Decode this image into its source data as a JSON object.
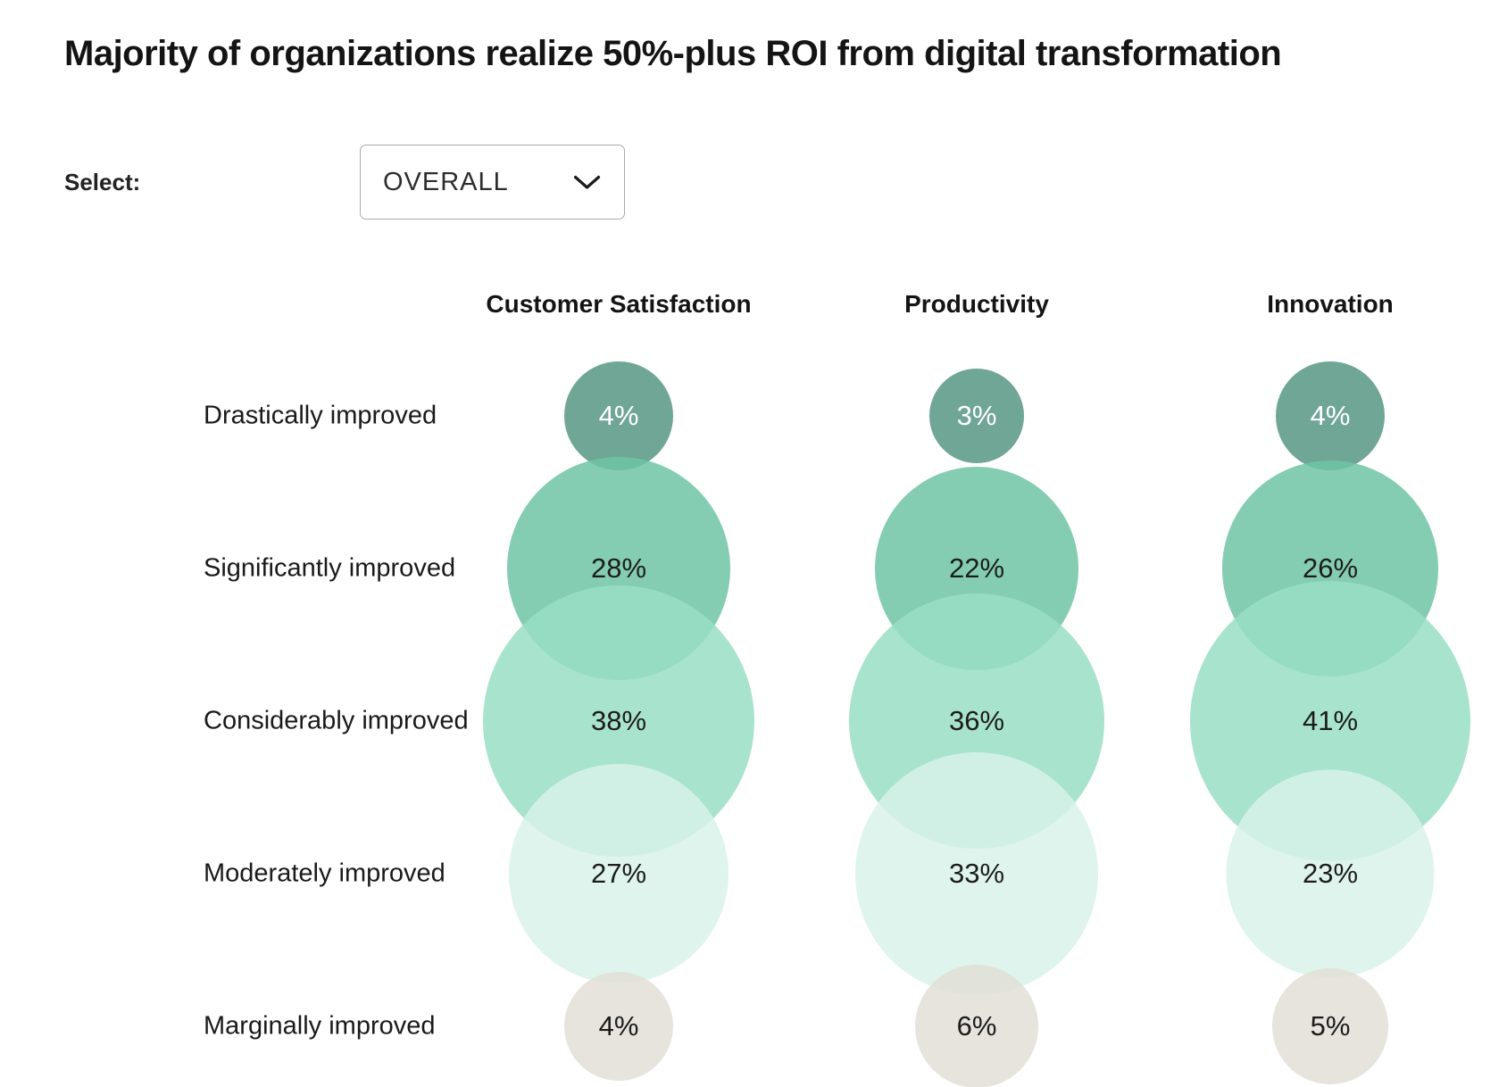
{
  "title": "Majority of organizations realize 50%-plus ROI from digital transformation",
  "select": {
    "label": "Select:",
    "value": "OVERALL"
  },
  "chart_data": {
    "type": "bubble",
    "title": "Majority of organizations realize 50%-plus ROI from digital transformation",
    "unit": "%",
    "grid": false,
    "legend": "none",
    "columns": [
      "Customer Satisfaction",
      "Productivity",
      "Innovation"
    ],
    "rows": [
      "Drastically improved",
      "Significantly improved",
      "Considerably improved",
      "Moderately improved",
      "Marginally improved"
    ],
    "series": [
      {
        "name": "Customer Satisfaction",
        "values": [
          4,
          28,
          38,
          27,
          4
        ]
      },
      {
        "name": "Productivity",
        "values": [
          3,
          22,
          36,
          33,
          6
        ]
      },
      {
        "name": "Innovation",
        "values": [
          4,
          26,
          41,
          23,
          5
        ]
      }
    ],
    "bubble_colors_by_row": [
      "#70A795",
      "#84CDB2",
      "#A8E3CE",
      "#DEF4EC",
      "#E6E4DD"
    ],
    "value_label_colors_by_row": [
      "#FFFFFF",
      "#1C1C1C",
      "#1C1C1C",
      "#1C1C1C",
      "#1C1C1C"
    ]
  }
}
